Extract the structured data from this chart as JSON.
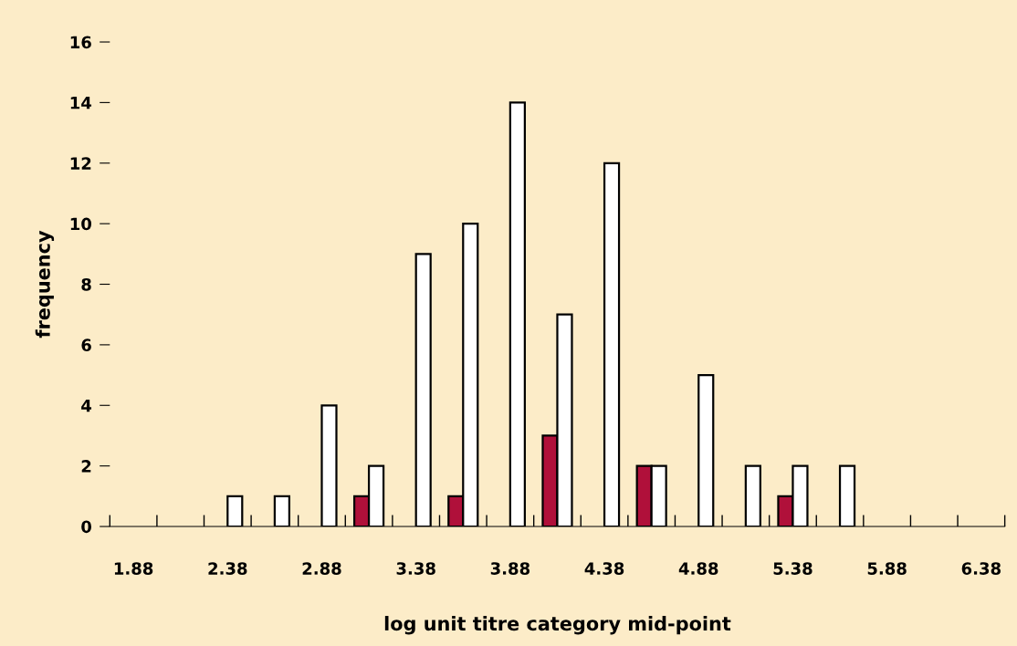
{
  "chart_data": {
    "type": "bar",
    "xlabel": "log unit titre category mid-point",
    "ylabel": "frequency",
    "categories": [
      "1.88",
      null,
      "2.38",
      null,
      "2.88",
      null,
      "3.38",
      null,
      "3.88",
      null,
      "4.38",
      null,
      "4.88",
      null,
      "5.38",
      null,
      "5.88",
      null,
      "6.38"
    ],
    "series": [
      {
        "color": "#b0103a",
        "values": [
          0,
          0,
          0,
          0,
          0,
          1,
          0,
          1,
          0,
          3,
          0,
          2,
          0,
          0,
          1,
          0,
          0,
          0,
          0
        ]
      },
      {
        "color": "#ffffff",
        "values": [
          0,
          0,
          1,
          1,
          4,
          2,
          9,
          10,
          14,
          7,
          12,
          2,
          5,
          2,
          2,
          2,
          0,
          0,
          0
        ]
      }
    ],
    "ylim": [
      0,
      16
    ],
    "yticks": [
      0,
      2,
      4,
      6,
      8,
      10,
      12,
      14,
      16
    ],
    "grid": false
  }
}
